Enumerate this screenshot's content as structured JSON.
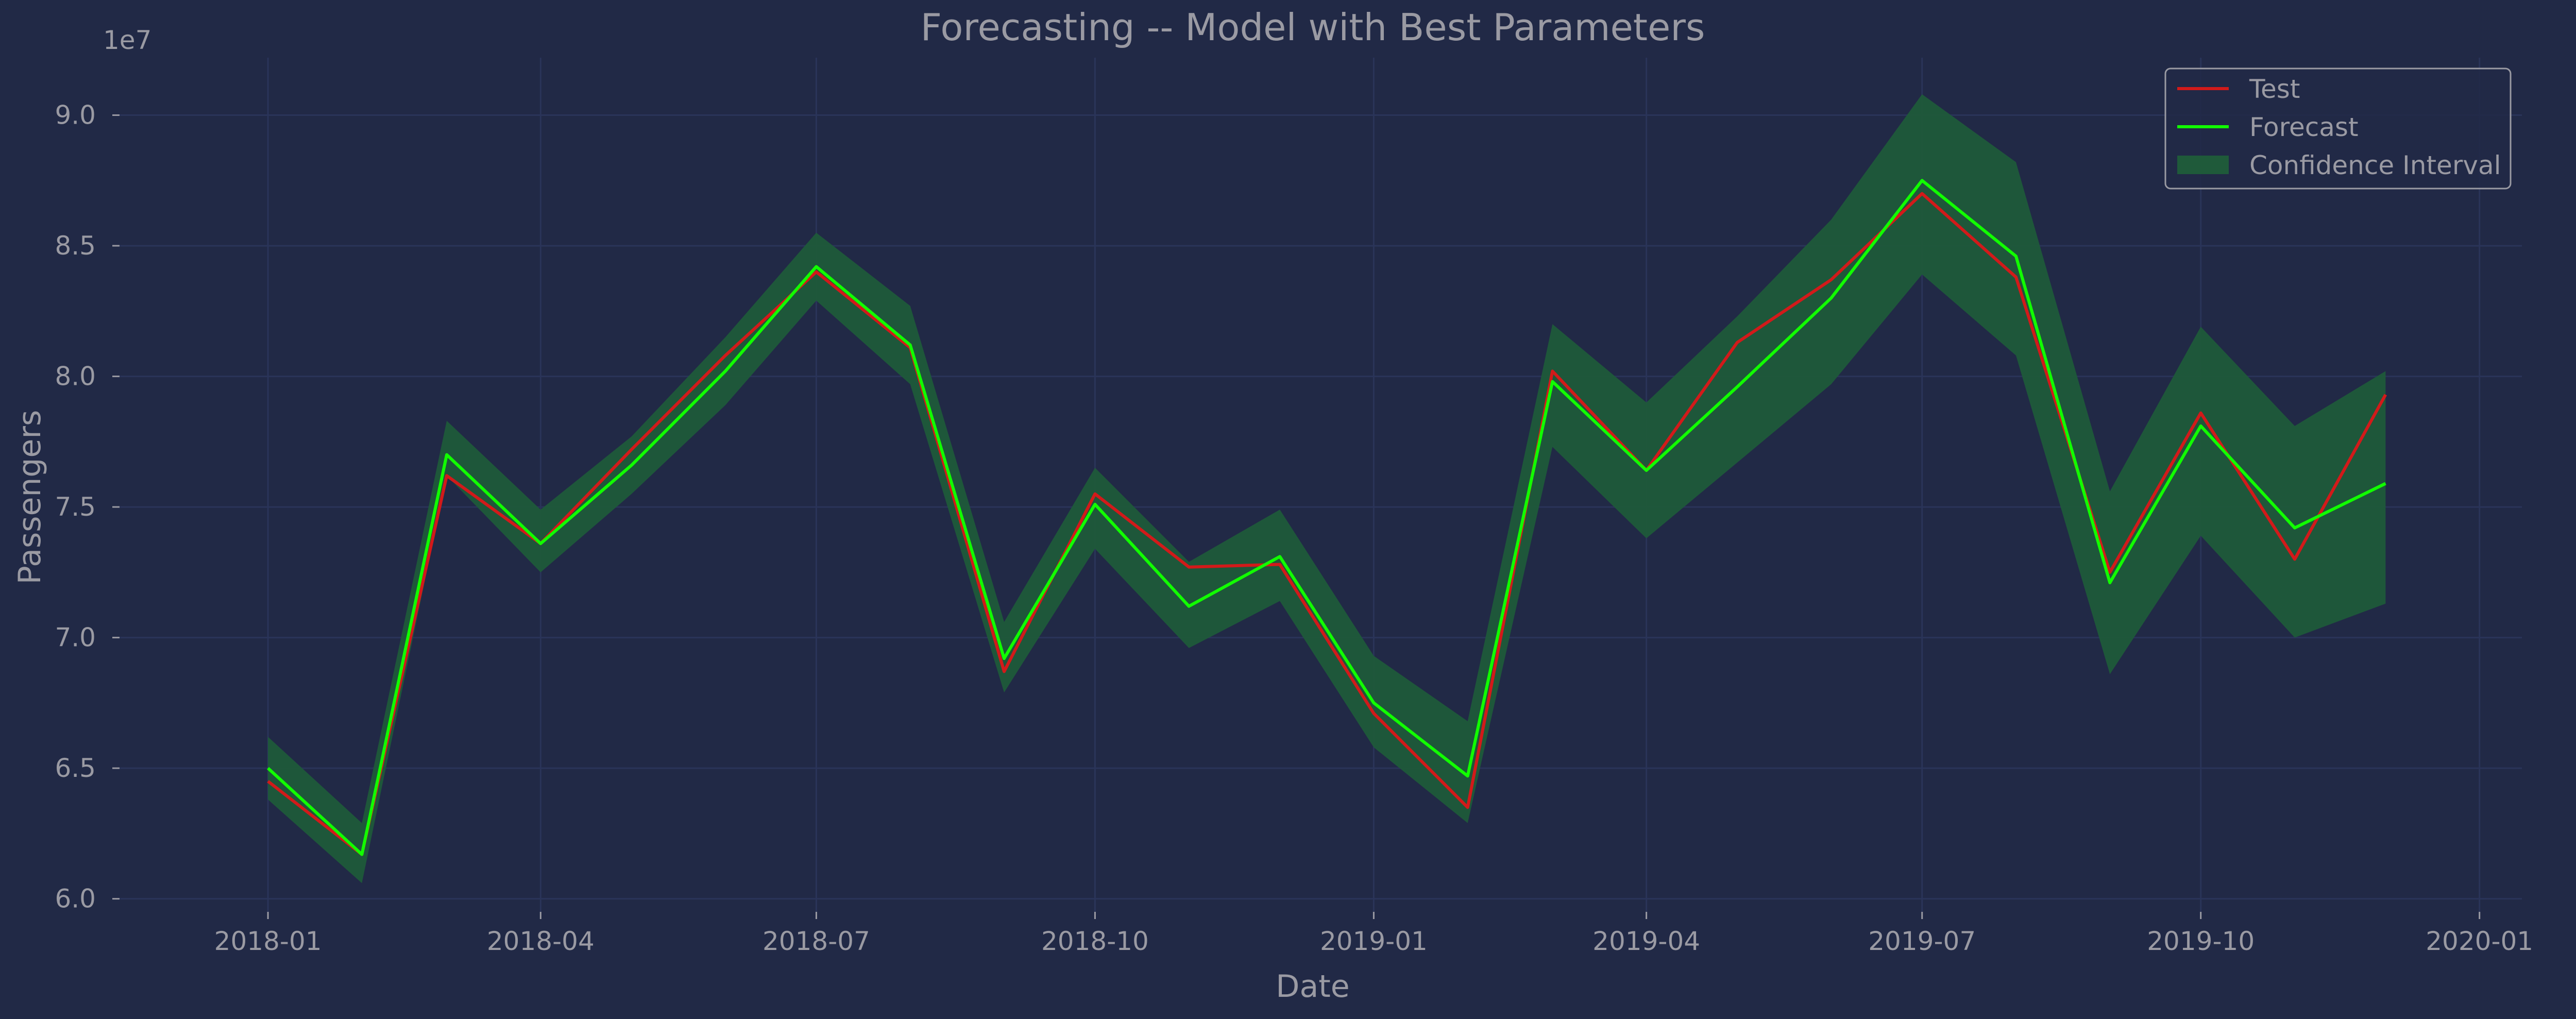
{
  "chart_data": {
    "type": "line",
    "title": "Forecasting -- Model with Best Parameters",
    "xlabel": "Date",
    "ylabel": "Passengers",
    "y_offset_label": "1e7",
    "y_scale": 10000000,
    "grid": true,
    "legend_position": "top-right",
    "x_ticks": [
      {
        "date": "2018-01-01",
        "label": "2018-01"
      },
      {
        "date": "2018-04-01",
        "label": "2018-04"
      },
      {
        "date": "2018-07-01",
        "label": "2018-07"
      },
      {
        "date": "2018-10-01",
        "label": "2018-10"
      },
      {
        "date": "2019-01-01",
        "label": "2019-01"
      },
      {
        "date": "2019-04-01",
        "label": "2019-04"
      },
      {
        "date": "2019-07-01",
        "label": "2019-07"
      },
      {
        "date": "2019-10-01",
        "label": "2019-10"
      },
      {
        "date": "2020-01-01",
        "label": "2020-01"
      }
    ],
    "y_ticks": [
      {
        "value": 6.0,
        "label": "6.0"
      },
      {
        "value": 6.5,
        "label": "6.5"
      },
      {
        "value": 7.0,
        "label": "7.0"
      },
      {
        "value": 7.5,
        "label": "7.5"
      },
      {
        "value": 8.0,
        "label": "8.0"
      },
      {
        "value": 8.5,
        "label": "8.5"
      },
      {
        "value": 9.0,
        "label": "9.0"
      }
    ],
    "xlim": [
      "2017-11-13",
      "2020-01-15"
    ],
    "ylim": [
      5.95,
      9.22
    ],
    "x": [
      "2018-01-01",
      "2018-02-01",
      "2018-03-01",
      "2018-04-01",
      "2018-05-01",
      "2018-06-01",
      "2018-07-01",
      "2018-08-01",
      "2018-09-01",
      "2018-10-01",
      "2018-11-01",
      "2018-12-01",
      "2019-01-01",
      "2019-02-01",
      "2019-03-01",
      "2019-04-01",
      "2019-05-01",
      "2019-06-01",
      "2019-07-01",
      "2019-08-01",
      "2019-09-01",
      "2019-10-01",
      "2019-11-01",
      "2019-12-01"
    ],
    "series": [
      {
        "name": "Test",
        "color": "#d21a1a",
        "values": [
          6.45,
          6.17,
          7.62,
          7.36,
          7.72,
          8.08,
          8.4,
          8.11,
          6.87,
          7.55,
          7.27,
          7.28,
          6.71,
          6.35,
          8.02,
          7.64,
          8.13,
          8.37,
          8.7,
          8.38,
          7.25,
          7.86,
          7.3,
          7.93
        ]
      },
      {
        "name": "Forecast",
        "color": "#11ff00",
        "values": [
          6.5,
          6.17,
          7.7,
          7.36,
          7.66,
          8.02,
          8.42,
          8.12,
          6.92,
          7.51,
          7.12,
          7.31,
          6.75,
          6.47,
          7.98,
          7.64,
          7.96,
          8.3,
          8.75,
          8.46,
          7.21,
          7.81,
          7.42,
          7.59
        ]
      }
    ],
    "band": {
      "name": "Confidence Interval",
      "color": "#1f5a3a",
      "lower": [
        6.38,
        6.06,
        7.62,
        7.25,
        7.55,
        7.89,
        8.29,
        7.97,
        6.79,
        7.34,
        6.96,
        7.14,
        6.58,
        6.29,
        7.73,
        7.38,
        7.67,
        7.97,
        8.39,
        8.08,
        6.86,
        7.39,
        7.0,
        7.13
      ],
      "upper": [
        6.62,
        6.29,
        7.83,
        7.49,
        7.77,
        8.15,
        8.55,
        8.27,
        7.06,
        7.65,
        7.29,
        7.49,
        6.93,
        6.68,
        8.2,
        7.9,
        8.23,
        8.6,
        9.08,
        8.82,
        7.56,
        8.19,
        7.81,
        8.02
      ]
    }
  }
}
